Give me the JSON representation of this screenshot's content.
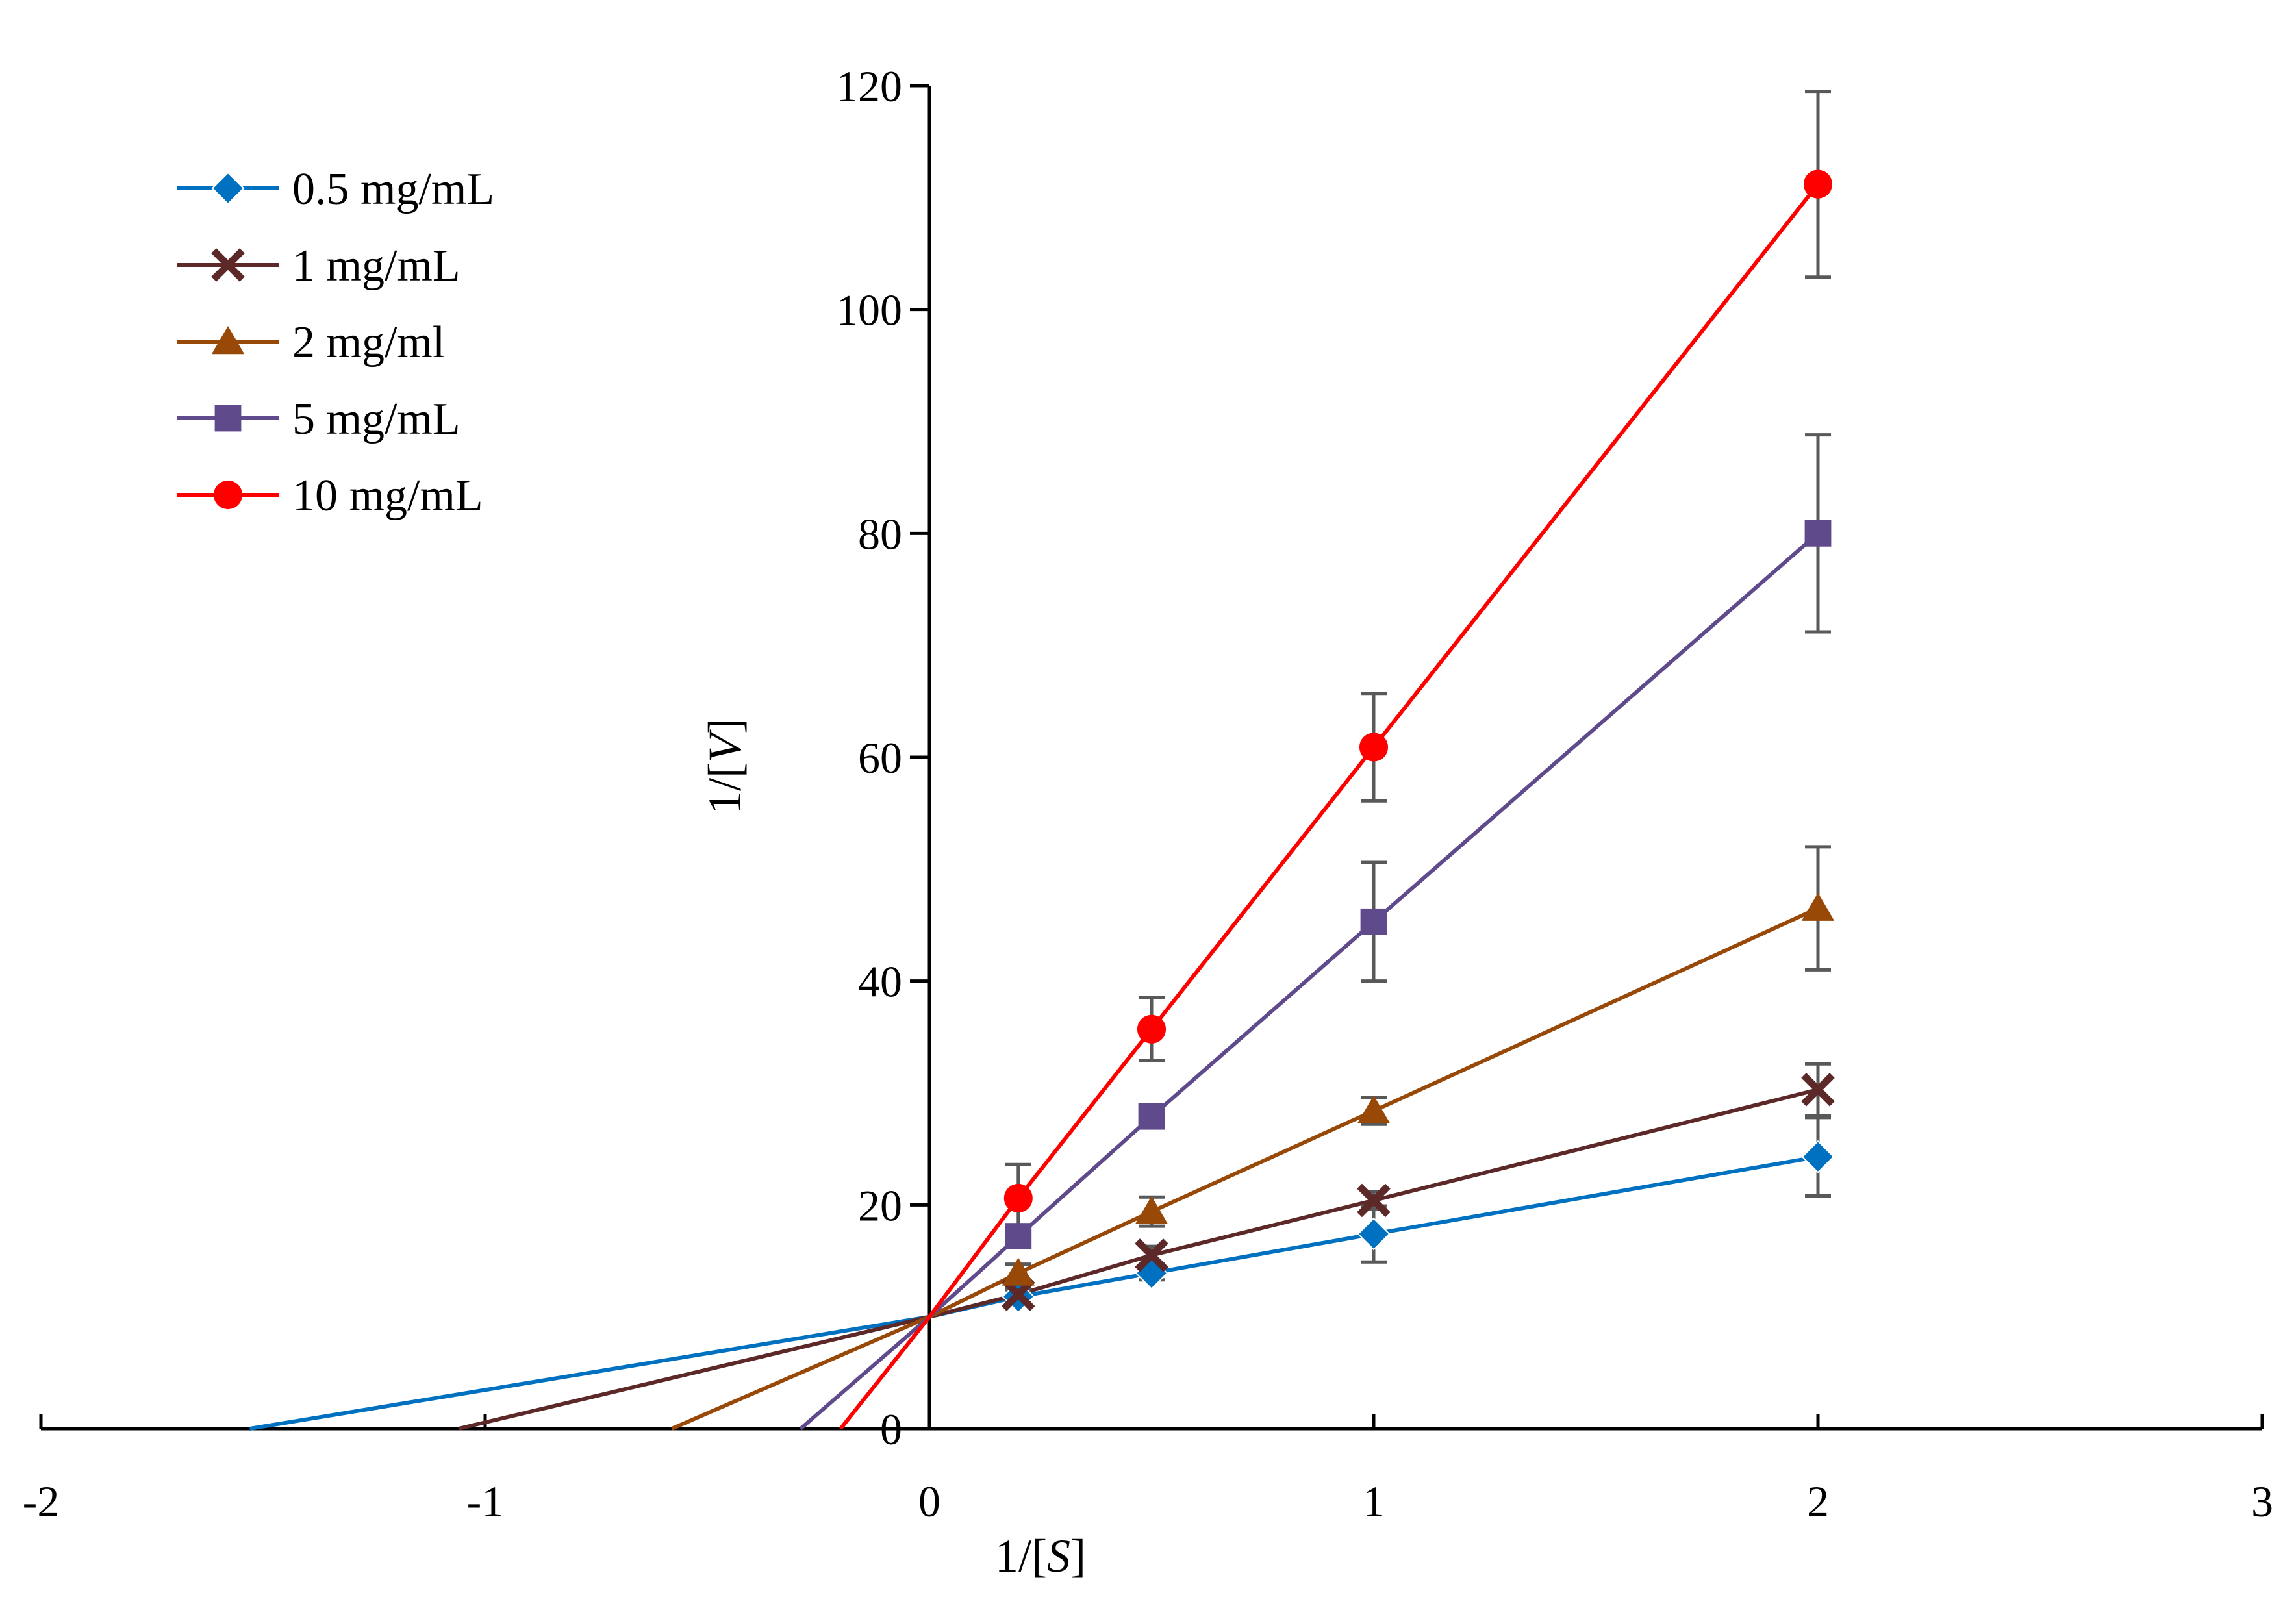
{
  "chart_data": {
    "type": "line",
    "title": "",
    "xlabel": "1/[S]",
    "ylabel": "1/[V]",
    "xlim": [
      -2,
      3
    ],
    "ylim": [
      0,
      120
    ],
    "x_ticks": [
      "-2",
      "-1",
      "0",
      "1",
      "2",
      "3"
    ],
    "y_ticks": [
      "0",
      "20",
      "40",
      "60",
      "80",
      "100",
      "120"
    ],
    "legend_position": "top-left",
    "grid": false,
    "series": [
      {
        "name": "0.5 mg/mL",
        "color": "#0070C0",
        "marker": "diamond",
        "x": [
          0.2,
          0.5,
          1,
          2
        ],
        "y": [
          11.8,
          13.9,
          17.4,
          24.3
        ],
        "error": [
          0.6,
          0.6,
          2.5,
          3.5
        ],
        "extrapolation": {
          "x": [
            -1.53,
            0
          ],
          "y": [
            0,
            10
          ]
        }
      },
      {
        "name": "1 mg/mL",
        "color": "#5C2828",
        "marker": "x",
        "x": [
          0.2,
          0.5,
          1,
          2
        ],
        "y": [
          12.0,
          15.5,
          20.4,
          30.3
        ],
        "error": [
          0.6,
          0.8,
          0.8,
          2.3
        ],
        "extrapolation": {
          "x": [
            -1.06,
            0
          ],
          "y": [
            0,
            10
          ]
        }
      },
      {
        "name": "2 mg/ml",
        "color": "#984807",
        "marker": "triangle",
        "x": [
          0.2,
          0.5,
          1,
          2
        ],
        "y": [
          13.9,
          19.4,
          28.4,
          46.5
        ],
        "error": [
          0.8,
          1.3,
          1.2,
          5.5
        ],
        "extrapolation": {
          "x": [
            -0.58,
            0
          ],
          "y": [
            0,
            10
          ]
        }
      },
      {
        "name": "5 mg/mL",
        "color": "#5F4B8B",
        "marker": "square",
        "x": [
          0.2,
          0.5,
          1,
          2
        ],
        "y": [
          17.2,
          27.9,
          45.3,
          80.0
        ],
        "error": [
          1.0,
          1.0,
          5.3,
          8.8
        ],
        "extrapolation": {
          "x": [
            -0.29,
            0
          ],
          "y": [
            0,
            10
          ]
        }
      },
      {
        "name": "10 mg/mL",
        "color": "#FF0000",
        "marker": "circle",
        "x": [
          0.2,
          0.5,
          1,
          2
        ],
        "y": [
          20.6,
          35.7,
          60.9,
          111.2
        ],
        "error": [
          3.0,
          2.8,
          4.8,
          8.3
        ],
        "extrapolation": {
          "x": [
            -0.2,
            0
          ],
          "y": [
            0,
            10
          ]
        }
      }
    ]
  }
}
